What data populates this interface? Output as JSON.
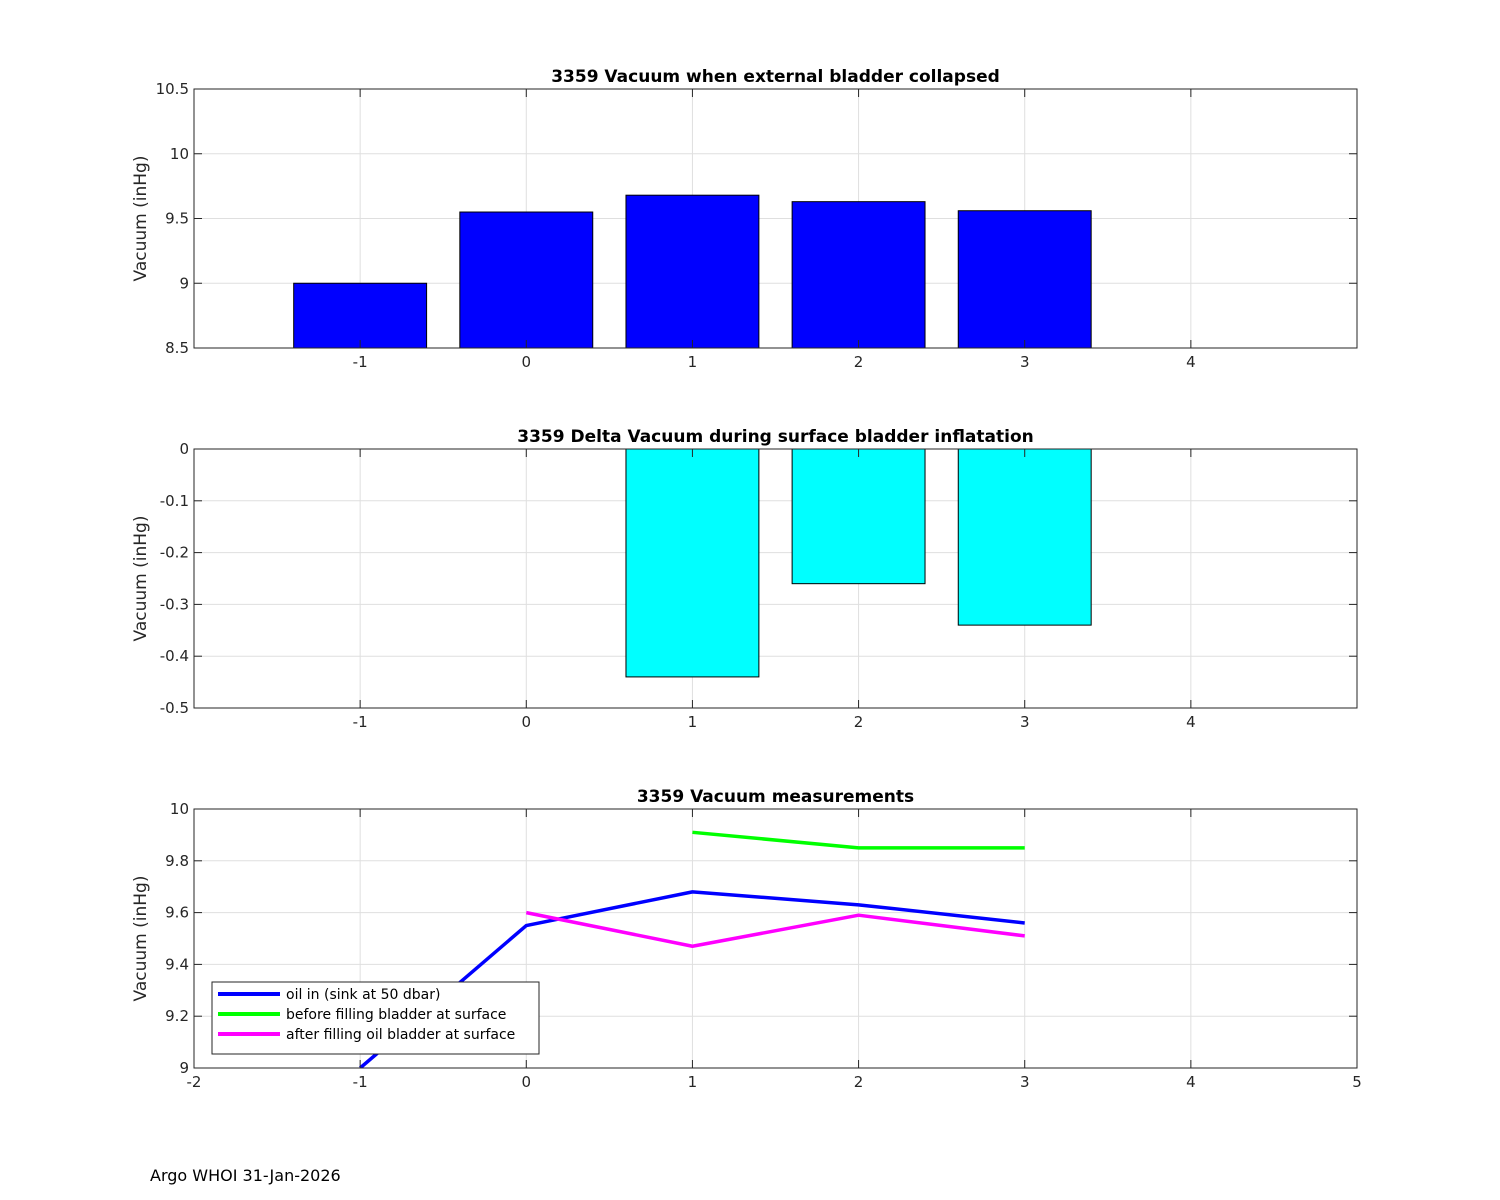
{
  "footer": "Argo WHOI 31-Jan-2026",
  "chart_data": [
    {
      "type": "bar",
      "title": "3359 Vacuum when external bladder collapsed",
      "xlabel": "",
      "ylabel": "Vacuum (inHg)",
      "xlim": [
        -2,
        5
      ],
      "ylim": [
        8.5,
        10.5
      ],
      "xticks": [
        -1,
        0,
        1,
        2,
        3,
        4
      ],
      "yticks": [
        8.5,
        9,
        9.5,
        10,
        10.5
      ],
      "grid": true,
      "bar_color": "#0000ff",
      "x": [
        -1,
        0,
        1,
        2,
        3
      ],
      "values": [
        9.0,
        9.55,
        9.68,
        9.63,
        9.56
      ]
    },
    {
      "type": "bar",
      "title": "3359 Delta Vacuum during surface bladder inflatation",
      "xlabel": "",
      "ylabel": "Vacuum (inHg)",
      "xlim": [
        -2,
        5
      ],
      "ylim": [
        -0.5,
        0
      ],
      "xticks": [
        -1,
        0,
        1,
        2,
        3,
        4
      ],
      "yticks": [
        -0.5,
        -0.4,
        -0.3,
        -0.2,
        -0.1,
        0
      ],
      "grid": true,
      "bar_color": "#00ffff",
      "x": [
        1,
        2,
        3
      ],
      "values": [
        -0.44,
        -0.26,
        -0.34
      ]
    },
    {
      "type": "line",
      "title": "3359 Vacuum measurements",
      "xlabel": "",
      "ylabel": "Vacuum (inHg)",
      "xlim": [
        -2,
        5
      ],
      "ylim": [
        9,
        10
      ],
      "xticks": [
        -2,
        -1,
        0,
        1,
        2,
        3,
        4,
        5
      ],
      "yticks": [
        9,
        9.2,
        9.4,
        9.6,
        9.8,
        10
      ],
      "grid": true,
      "legend_position": "bottom-left",
      "series": [
        {
          "name": "oil in (sink at 50 dbar)",
          "color": "#0000ff",
          "x": [
            -1,
            0,
            1,
            2,
            3
          ],
          "values": [
            9.0,
            9.55,
            9.68,
            9.63,
            9.56
          ]
        },
        {
          "name": "before filling bladder at surface",
          "color": "#00ff00",
          "x": [
            1,
            2,
            3
          ],
          "values": [
            9.91,
            9.85,
            9.85
          ]
        },
        {
          "name": "after filling oil bladder at surface",
          "color": "#ff00ff",
          "x": [
            0,
            1,
            2,
            3
          ],
          "values": [
            9.6,
            9.47,
            9.59,
            9.51
          ]
        }
      ]
    }
  ]
}
